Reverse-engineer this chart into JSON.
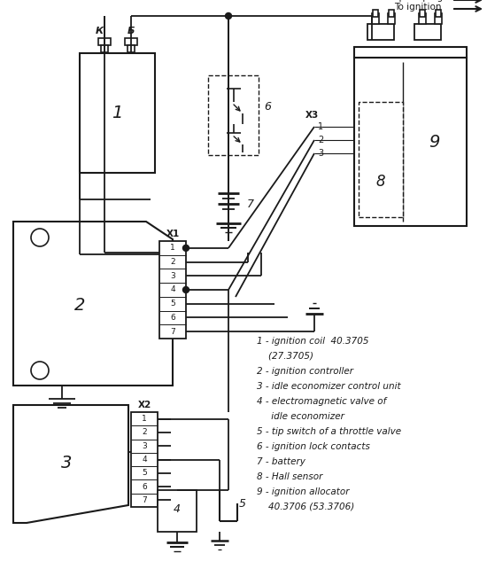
{
  "bg_color": "#ffffff",
  "line_color": "#1a1a1a",
  "text_color": "#1a1a1a",
  "legend_lines": [
    "1 - ignition coil  40.3705",
    "    (27.3705)",
    "2 - ignition controller",
    "3 - idle economizer control unit",
    "4 - electromagnetic valve of",
    "     idle economizer",
    "5 - tip switch of a throttle valve",
    "6 - ignition lock contacts",
    "7 - battery",
    "8 - Hall sensor",
    "9 - ignition allocator",
    "    40.3706 (53.3706)"
  ]
}
